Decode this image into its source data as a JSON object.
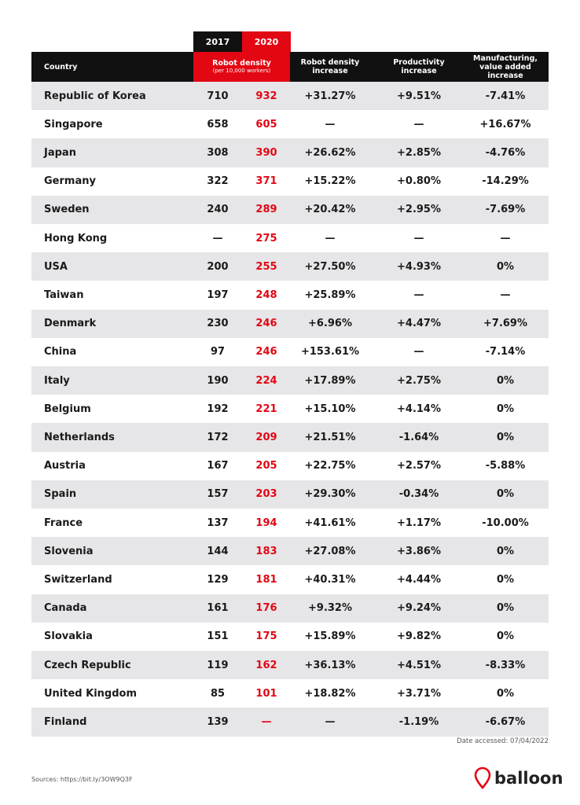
{
  "header": {
    "year_2017": "2017",
    "year_2020": "2020",
    "country": "Country",
    "robot_density": "Robot density",
    "robot_density_unit": "(per 10,000 workers)",
    "robot_density_increase": "Robot density increase",
    "productivity_increase": "Productivity increase",
    "manufacturing_increase": "Manufacturing, value added increase"
  },
  "table": {
    "rows": [
      [
        "Republic of Korea",
        "710",
        "932",
        "+31.27%",
        "+9.51%",
        "-7.41%"
      ],
      [
        "Singapore",
        "658",
        "605",
        "—",
        "—",
        "+16.67%"
      ],
      [
        "Japan",
        "308",
        "390",
        "+26.62%",
        "+2.85%",
        "-4.76%"
      ],
      [
        "Germany",
        "322",
        "371",
        "+15.22%",
        "+0.80%",
        "-14.29%"
      ],
      [
        "Sweden",
        "240",
        "289",
        "+20.42%",
        "+2.95%",
        "-7.69%"
      ],
      [
        "Hong Kong",
        "—",
        "275",
        "—",
        "—",
        "—"
      ],
      [
        "USA",
        "200",
        "255",
        "+27.50%",
        "+4.93%",
        "0%"
      ],
      [
        "Taiwan",
        "197",
        "248",
        "+25.89%",
        "—",
        "—"
      ],
      [
        "Denmark",
        "230",
        "246",
        "+6.96%",
        "+4.47%",
        "+7.69%"
      ],
      [
        "China",
        "97",
        "246",
        "+153.61%",
        "—",
        "-7.14%"
      ],
      [
        "Italy",
        "190",
        "224",
        "+17.89%",
        "+2.75%",
        "0%"
      ],
      [
        "Belgium",
        "192",
        "221",
        "+15.10%",
        "+4.14%",
        "0%"
      ],
      [
        "Netherlands",
        "172",
        "209",
        "+21.51%",
        "-1.64%",
        "0%"
      ],
      [
        "Austria",
        "167",
        "205",
        "+22.75%",
        "+2.57%",
        "-5.88%"
      ],
      [
        "Spain",
        "157",
        "203",
        "+29.30%",
        "-0.34%",
        "0%"
      ],
      [
        "France",
        "137",
        "194",
        "+41.61%",
        "+1.17%",
        "-10.00%"
      ],
      [
        "Slovenia",
        "144",
        "183",
        "+27.08%",
        "+3.86%",
        "0%"
      ],
      [
        "Switzerland",
        "129",
        "181",
        "+40.31%",
        "+4.44%",
        "0%"
      ],
      [
        "Canada",
        "161",
        "176",
        "+9.32%",
        "+9.24%",
        "0%"
      ],
      [
        "Slovakia",
        "151",
        "175",
        "+15.89%",
        "+9.82%",
        "0%"
      ],
      [
        "Czech Republic",
        "119",
        "162",
        "+36.13%",
        "+4.51%",
        "-8.33%"
      ],
      [
        "United Kingdom",
        "85",
        "101",
        "+18.82%",
        "+3.71%",
        "0%"
      ],
      [
        "Finland",
        "139",
        "—",
        "—",
        "-1.19%",
        "-6.67%"
      ]
    ]
  },
  "footer": {
    "date_accessed": "Date accessed: 07/04/2022",
    "sources": "Sources: https://bit.ly/3OW9Q3F",
    "brand": "balloon"
  }
}
